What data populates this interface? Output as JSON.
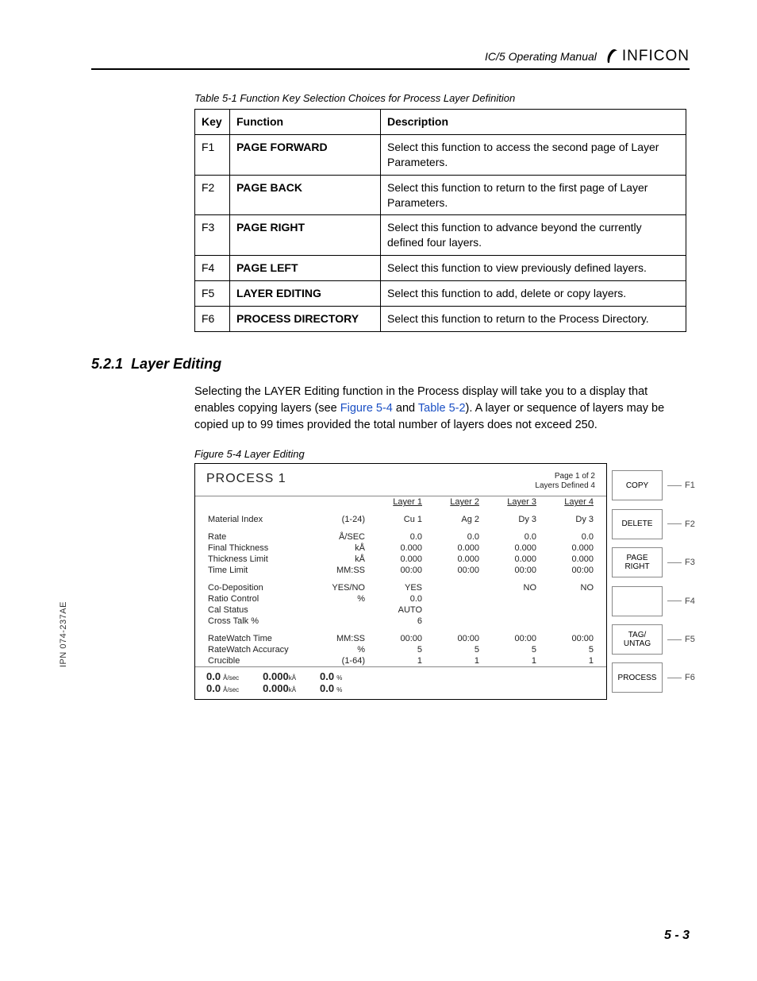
{
  "header": {
    "manual_title": "IC/5 Operating Manual",
    "brand": "INFICON"
  },
  "side_label": "IPN 074-237AE",
  "page_number": "5 - 3",
  "fk_table": {
    "caption": "Table 5-1  Function Key Selection Choices for Process Layer Definition",
    "headers": [
      "Key",
      "Function",
      "Description"
    ],
    "rows": [
      {
        "key": "F1",
        "func": "PAGE FORWARD",
        "desc": "Select this function to access the second page of Layer Parameters."
      },
      {
        "key": "F2",
        "func": "PAGE BACK",
        "desc": "Select this function to return to the first page of Layer Parameters."
      },
      {
        "key": "F3",
        "func": "PAGE RIGHT",
        "desc": "Select this function to advance beyond the currently defined four layers."
      },
      {
        "key": "F4",
        "func": "PAGE LEFT",
        "desc": "Select this function to view previously defined layers."
      },
      {
        "key": "F5",
        "func": "LAYER EDITING",
        "desc": "Select this function to add, delete or copy layers."
      },
      {
        "key": "F6",
        "func": "PROCESS DIRECTORY",
        "desc": "Select this function to return to the Process Directory."
      }
    ]
  },
  "section": {
    "number": "5.2.1",
    "title": "Layer Editing",
    "para_pre": "Selecting the LAYER Editing function in the Process display will take you to a display that enables copying layers (see ",
    "xref1": "Figure 5-4",
    "para_mid": " and ",
    "xref2": "Table 5-2",
    "para_post": "). A layer or sequence of layers may be copied up to 99 times provided the total number of layers does not exceed 250."
  },
  "figure": {
    "caption": "Figure 5-4  Layer Editing",
    "proc_title": "PROCESS 1",
    "page_info_1": "Page 1 of 2",
    "page_info_2": "Layers Defined 4",
    "col_headers": [
      "Layer 1",
      "Layer 2",
      "Layer 3",
      "Layer 4"
    ],
    "rows": [
      {
        "label": "Material Index",
        "unit": "(1-24)",
        "v": [
          "Cu    1",
          "Ag    2",
          "Dy    3",
          "Dy    3"
        ]
      },
      {
        "label": "Rate",
        "unit": "Å/SEC",
        "v": [
          "0.0",
          "0.0",
          "0.0",
          "0.0"
        ]
      },
      {
        "label": "Final Thickness",
        "unit": "kÅ",
        "v": [
          "0.000",
          "0.000",
          "0.000",
          "0.000"
        ]
      },
      {
        "label": "Thickness Limit",
        "unit": "kÅ",
        "v": [
          "0.000",
          "0.000",
          "0.000",
          "0.000"
        ]
      },
      {
        "label": "Time Limit",
        "unit": "MM:SS",
        "v": [
          "00:00",
          "00:00",
          "00:00",
          "00:00"
        ]
      },
      {
        "label": "Co-Deposition",
        "unit": "YES/NO",
        "v": [
          "YES",
          "",
          "NO",
          "NO"
        ]
      },
      {
        "label": "Ratio Control",
        "unit": "%",
        "v": [
          "0.0",
          "",
          "",
          ""
        ]
      },
      {
        "label": "Cal Status",
        "unit": "",
        "v": [
          "AUTO",
          "",
          "",
          ""
        ]
      },
      {
        "label": "Cross Talk %",
        "unit": "",
        "v": [
          "6",
          "",
          "",
          ""
        ]
      },
      {
        "label": "RateWatch Time",
        "unit": "MM:SS",
        "v": [
          "00:00",
          "00:00",
          "00:00",
          "00:00"
        ]
      },
      {
        "label": "RateWatch Accuracy",
        "unit": "%",
        "v": [
          "5",
          "5",
          "5",
          "5"
        ]
      },
      {
        "label": "Crucible",
        "unit": "(1-64)",
        "v": [
          "1",
          "1",
          "1",
          "1"
        ]
      }
    ],
    "footer": {
      "a1": "0.0",
      "a1u": "Å/sec",
      "a2": "0.0",
      "a2u": "Å/sec",
      "b1": "0.000",
      "b1u": "kÅ",
      "b2": "0.000",
      "b2u": "kÅ",
      "c1": "0.0",
      "c1u": "%",
      "c2": "0.0",
      "c2u": "%"
    },
    "softkeys": [
      {
        "label": "COPY",
        "key": "F1"
      },
      {
        "label": "DELETE",
        "key": "F2"
      },
      {
        "label": "PAGE\nRIGHT",
        "key": "F3"
      },
      {
        "label": "",
        "key": "F4"
      },
      {
        "label": "TAG/\nUNTAG",
        "key": "F5"
      },
      {
        "label": "PROCESS",
        "key": "F6"
      }
    ]
  }
}
